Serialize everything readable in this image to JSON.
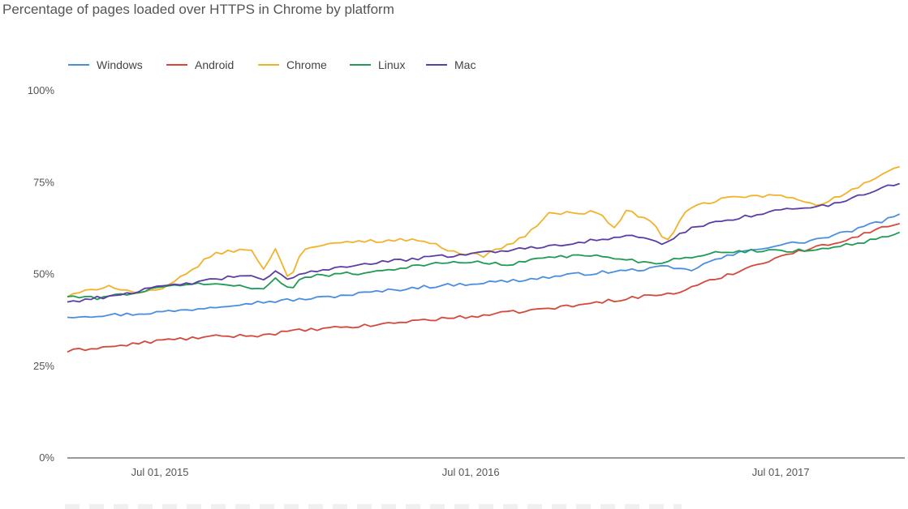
{
  "title": "Percentage of pages loaded over HTTPS in Chrome by platform",
  "colors": {
    "windows": "#4a8ee0",
    "android": "#d5483a",
    "chrome": "#f2b22a",
    "linux": "#1f9b55",
    "mac": "#5a3ea5"
  },
  "chart_data": {
    "type": "line",
    "title": "Percentage of pages loaded over HTTPS in Chrome by platform",
    "xlabel": "",
    "ylabel": "",
    "x_ticks": [
      "Jul 01, 2015",
      "Jul 01, 2016",
      "Jul 01, 2017"
    ],
    "y_ticks": [
      "0%",
      "25%",
      "50%",
      "75%",
      "100%"
    ],
    "ylim": [
      0,
      100
    ],
    "x_range": [
      "2015-03-14",
      "2017-11-24"
    ],
    "x_step_days": 7,
    "legend_position": "top-left",
    "grid": false,
    "series": [
      {
        "name": "Windows",
        "color": "#4a8ee0",
        "anchors": [
          [
            "2015-03-14",
            38.5
          ],
          [
            "2015-06-01",
            39.2
          ],
          [
            "2015-08-01",
            40.3
          ],
          [
            "2015-10-01",
            42.0
          ],
          [
            "2015-12-01",
            43.0
          ],
          [
            "2016-01-01",
            43.5
          ],
          [
            "2016-03-01",
            45.0
          ],
          [
            "2016-05-01",
            46.5
          ],
          [
            "2016-07-01",
            47.5
          ],
          [
            "2016-09-01",
            48.5
          ],
          [
            "2016-11-01",
            50.0
          ],
          [
            "2017-01-01",
            51.0
          ],
          [
            "2017-02-15",
            52.0
          ],
          [
            "2017-03-15",
            51.0
          ],
          [
            "2017-04-15",
            54.0
          ],
          [
            "2017-06-01",
            57.0
          ],
          [
            "2017-08-01",
            59.0
          ],
          [
            "2017-09-01",
            60.5
          ],
          [
            "2017-10-01",
            62.5
          ],
          [
            "2017-11-24",
            66.5
          ]
        ]
      },
      {
        "name": "Android",
        "color": "#d5483a",
        "anchors": [
          [
            "2015-03-14",
            29.0
          ],
          [
            "2015-04-15",
            30.0
          ],
          [
            "2015-05-15",
            30.5
          ],
          [
            "2015-07-01",
            32.0
          ],
          [
            "2015-09-01",
            33.0
          ],
          [
            "2015-11-01",
            33.5
          ],
          [
            "2015-12-01",
            34.5
          ],
          [
            "2016-01-01",
            35.0
          ],
          [
            "2016-03-01",
            36.0
          ],
          [
            "2016-05-01",
            37.5
          ],
          [
            "2016-07-01",
            38.5
          ],
          [
            "2016-09-01",
            40.0
          ],
          [
            "2016-11-01",
            41.5
          ],
          [
            "2017-01-01",
            43.5
          ],
          [
            "2017-03-01",
            45.0
          ],
          [
            "2017-05-01",
            50.0
          ],
          [
            "2017-07-01",
            55.0
          ],
          [
            "2017-09-01",
            58.5
          ],
          [
            "2017-11-24",
            64.5
          ]
        ]
      },
      {
        "name": "Chrome",
        "color": "#f2b22a",
        "anchors": [
          [
            "2015-03-14",
            44.0
          ],
          [
            "2015-05-01",
            47.0
          ],
          [
            "2015-06-01",
            45.0
          ],
          [
            "2015-07-01",
            45.5
          ],
          [
            "2015-08-01",
            50.0
          ],
          [
            "2015-09-01",
            55.5
          ],
          [
            "2015-10-15",
            57.0
          ],
          [
            "2015-11-01",
            51.5
          ],
          [
            "2015-11-15",
            57.0
          ],
          [
            "2015-12-01",
            48.0
          ],
          [
            "2015-12-15",
            57.0
          ],
          [
            "2016-02-15",
            59.0
          ],
          [
            "2016-05-01",
            59.5
          ],
          [
            "2016-06-15",
            56.0
          ],
          [
            "2016-07-15",
            55.0
          ],
          [
            "2016-09-01",
            60.0
          ],
          [
            "2016-10-01",
            66.5
          ],
          [
            "2016-12-01",
            67.0
          ],
          [
            "2016-12-15",
            62.0
          ],
          [
            "2017-01-01",
            67.5
          ],
          [
            "2017-02-01",
            64.0
          ],
          [
            "2017-02-15",
            58.5
          ],
          [
            "2017-03-15",
            68.0
          ],
          [
            "2017-05-01",
            71.0
          ],
          [
            "2017-07-01",
            71.5
          ],
          [
            "2017-08-15",
            69.0
          ],
          [
            "2017-09-15",
            72.0
          ],
          [
            "2017-11-24",
            80.0
          ]
        ]
      },
      {
        "name": "Linux",
        "color": "#1f9b55",
        "anchors": [
          [
            "2015-03-14",
            44.0
          ],
          [
            "2015-04-15",
            43.5
          ],
          [
            "2015-06-01",
            45.0
          ],
          [
            "2015-08-01",
            47.5
          ],
          [
            "2015-10-01",
            47.0
          ],
          [
            "2015-11-01",
            46.0
          ],
          [
            "2015-11-15",
            49.0
          ],
          [
            "2015-12-01",
            45.5
          ],
          [
            "2015-12-15",
            49.5
          ],
          [
            "2016-03-01",
            50.5
          ],
          [
            "2016-05-01",
            52.5
          ],
          [
            "2016-07-01",
            53.5
          ],
          [
            "2016-08-15",
            52.5
          ],
          [
            "2016-10-01",
            55.0
          ],
          [
            "2016-12-01",
            55.0
          ],
          [
            "2017-02-01",
            53.0
          ],
          [
            "2017-04-01",
            55.5
          ],
          [
            "2017-06-01",
            56.5
          ],
          [
            "2017-08-01",
            56.5
          ],
          [
            "2017-10-01",
            58.5
          ],
          [
            "2017-11-24",
            61.5
          ]
        ]
      },
      {
        "name": "Mac",
        "color": "#5a3ea5",
        "anchors": [
          [
            "2015-03-14",
            42.5
          ],
          [
            "2015-05-01",
            44.0
          ],
          [
            "2015-07-01",
            46.5
          ],
          [
            "2015-09-01",
            48.5
          ],
          [
            "2015-10-15",
            50.0
          ],
          [
            "2015-11-01",
            48.0
          ],
          [
            "2015-11-15",
            51.0
          ],
          [
            "2015-12-01",
            48.0
          ],
          [
            "2015-12-15",
            50.5
          ],
          [
            "2016-03-01",
            53.0
          ],
          [
            "2016-06-01",
            55.0
          ],
          [
            "2016-09-01",
            57.0
          ],
          [
            "2016-12-01",
            59.5
          ],
          [
            "2017-01-15",
            60.5
          ],
          [
            "2017-02-15",
            58.0
          ],
          [
            "2017-03-15",
            62.5
          ],
          [
            "2017-05-01",
            65.0
          ],
          [
            "2017-07-01",
            67.5
          ],
          [
            "2017-09-01",
            69.0
          ],
          [
            "2017-10-15",
            72.5
          ],
          [
            "2017-11-24",
            75.5
          ]
        ]
      }
    ]
  }
}
